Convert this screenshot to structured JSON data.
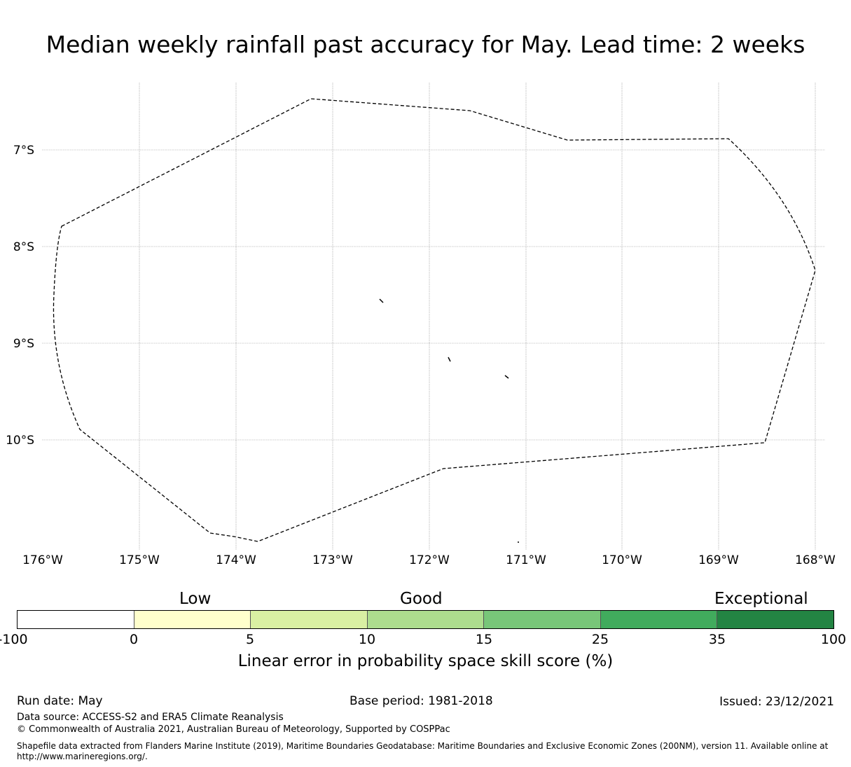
{
  "title": "Median weekly rainfall past accuracy for May. Lead time: 2 weeks",
  "map": {
    "lon_labels": [
      "176°W",
      "175°W",
      "174°W",
      "173°W",
      "172°W",
      "171°W",
      "170°W",
      "169°W",
      "168°W"
    ],
    "lat_labels": [
      "7°S",
      "8°S",
      "9°S",
      "10°S"
    ],
    "boundary_line_color": "#000000",
    "gridline_color": "#999999"
  },
  "legend": {
    "category_labels": {
      "low": "Low",
      "good": "Good",
      "exceptional": "Exceptional"
    },
    "segments": [
      {
        "from": -100,
        "to": 0,
        "color": "#ffffff"
      },
      {
        "from": 0,
        "to": 5,
        "color": "#ffffcc"
      },
      {
        "from": 5,
        "to": 10,
        "color": "#d9f0a3"
      },
      {
        "from": 10,
        "to": 15,
        "color": "#addd8e"
      },
      {
        "from": 15,
        "to": 25,
        "color": "#78c679"
      },
      {
        "from": 25,
        "to": 35,
        "color": "#41ab5d"
      },
      {
        "from": 35,
        "to": 100,
        "color": "#238443"
      }
    ],
    "tick_labels": [
      "-100",
      "0",
      "5",
      "10",
      "15",
      "25",
      "35",
      "100"
    ],
    "axis_title": "Linear error in probability space skill score (%)"
  },
  "footer": {
    "run_date": "Run date: May",
    "base_period": "Base period: 1981-2018",
    "issued": "Issued: 23/12/2021",
    "data_source": "Data source: ACCESS-S2 and ERA5 Climate Reanalysis",
    "copyright": "© Commonwealth of Australia 2021, Australian Bureau of Meteorology, Supported by COSPPac",
    "shapefile_note": "Shapefile data extracted from Flanders Marine Institute (2019), Maritime Boundaries Geodatabase: Maritime Boundaries and Exclusive Economic Zones (200NM), version 11. Available online at http://www.marineregions.org/."
  }
}
